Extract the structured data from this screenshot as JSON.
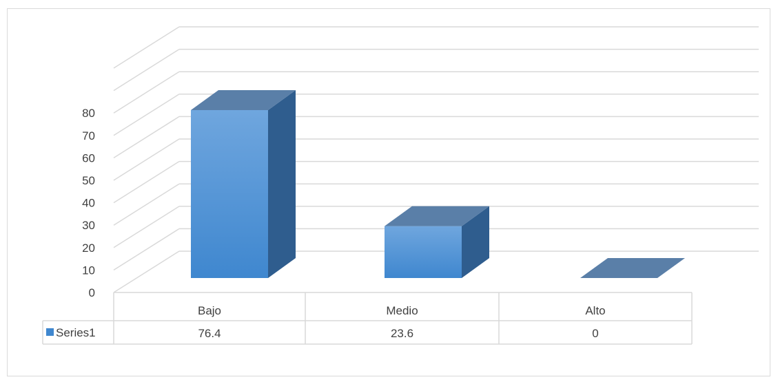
{
  "chart_data": {
    "type": "bar",
    "style": "3d-column-with-data-table",
    "categories": [
      "Bajo",
      "Medio",
      "Alto"
    ],
    "series": [
      {
        "name": "Series1",
        "values": [
          76.4,
          23.6,
          0
        ]
      }
    ],
    "ylim": [
      0,
      80
    ],
    "yticks": [
      "0",
      "10",
      "20",
      "30",
      "40",
      "50",
      "60",
      "70",
      "80"
    ],
    "table_values": [
      "76.4",
      "23.6",
      "0"
    ],
    "grid": true,
    "legend": "data-table-left",
    "title": "",
    "xlabel": "",
    "ylabel": "",
    "colors": {
      "front_top": "#6fa6de",
      "front_bottom": "#3f87cf",
      "side": "#2f5d8e",
      "top": "#5a7fa8",
      "grid": "#d9d9d9"
    }
  }
}
